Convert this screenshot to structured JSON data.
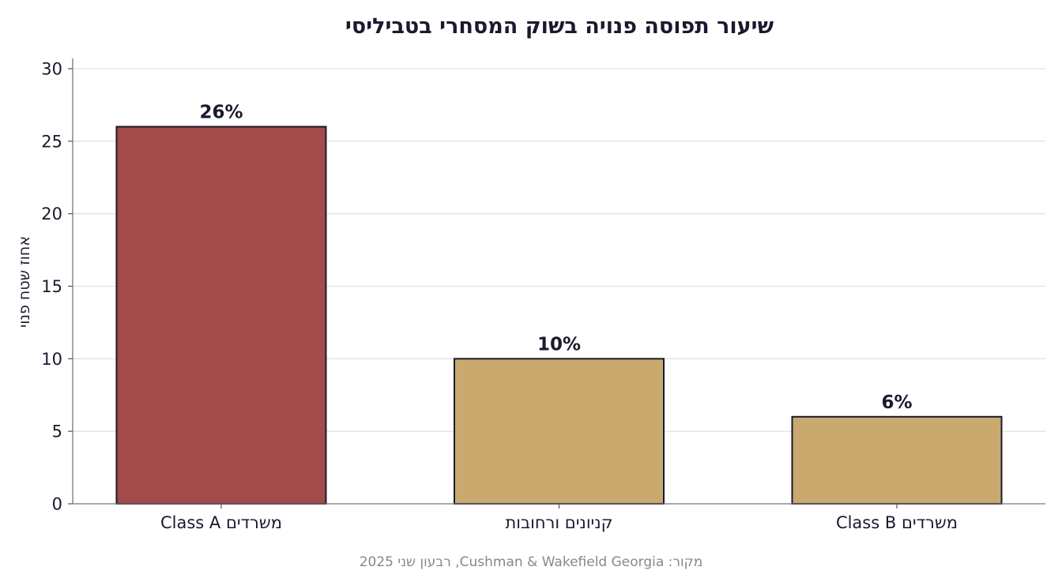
{
  "chart_data": {
    "type": "bar",
    "title": "שיעור תפוסה פנויה בשוק המסחרי בטביליסי",
    "ylabel": "אחוז שטח פנוי",
    "xlabel": "",
    "categories": [
      "משרדים Class A",
      "קניונים ורחובות",
      "משרדים Class B"
    ],
    "values": [
      26,
      10,
      6
    ],
    "value_labels": [
      "26%",
      "10%",
      "6%"
    ],
    "bar_colors": [
      "#a34a4a",
      "#c9a96e",
      "#c9a96e"
    ],
    "ylim": [
      0,
      30
    ],
    "yticks": [
      0,
      5,
      10,
      15,
      20,
      25,
      30
    ],
    "grid": true,
    "source": "מקור: Cushman & Wakefield Georgia, רבעון שני 2025"
  }
}
